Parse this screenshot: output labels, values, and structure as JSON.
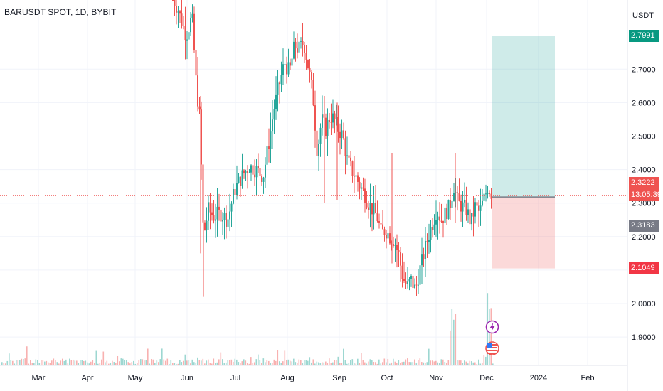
{
  "header": {
    "symbol_title": "BARUSDT SPOT, 1D, BYBIT",
    "currency": "USDT"
  },
  "chart_data": {
    "type": "candlestick",
    "title": "BARUSDT SPOT, 1D, BYBIT",
    "ylim": [
      1.82,
      2.88
    ],
    "y_ticks": [
      "1.9000",
      "2.0000",
      "2.1000",
      "2.2000",
      "2.3000",
      "2.4000",
      "2.5000",
      "2.6000",
      "2.7000"
    ],
    "x_ticks": [
      "Mar",
      "Apr",
      "May",
      "Jun",
      "Jul",
      "Aug",
      "Sep",
      "Oct",
      "Nov",
      "Dec",
      "2024",
      "Feb"
    ],
    "grid": true,
    "price_labels": {
      "target": "2.7991",
      "last": "2.3222",
      "countdown": "13:05:39",
      "entry": "2.3183",
      "stop": "2.1049"
    },
    "colors": {
      "up": "#26a69a",
      "down": "#ef5350",
      "target": "#089981",
      "stop": "#f23645",
      "last": "#ef5350",
      "entry": "#787b86"
    },
    "position": {
      "entry": 2.3183,
      "target": 2.7991,
      "stop": 2.1049
    },
    "annotation_icons": [
      "flash-event-icon",
      "us-flag-event-icon"
    ]
  }
}
